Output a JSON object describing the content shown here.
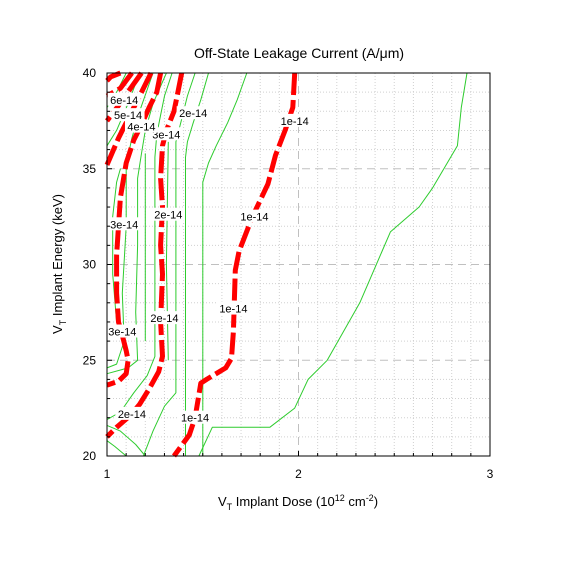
{
  "chart_data": {
    "type": "contour",
    "title": "Off-State Leakage Current (A/μm)",
    "xlabel": {
      "base": "V",
      "sub": "T",
      "rest": " Implant Dose (10",
      "sup": "12",
      "tail": " cm",
      "sup2": "-2",
      "end": ")"
    },
    "ylabel": {
      "base": "V",
      "sub": "T",
      "rest": " Implant Energy (keV)"
    },
    "xlim": [
      1,
      3
    ],
    "ylim": [
      20,
      40
    ],
    "x_ticks": [
      1,
      2,
      3
    ],
    "x_tick_labels": [
      "1",
      "2",
      "3"
    ],
    "y_ticks": [
      20,
      25,
      30,
      35,
      40
    ],
    "y_tick_labels": [
      "20",
      "25",
      "30",
      "35",
      "40"
    ],
    "grid": "dashed at major ticks, dotted at minor ticks",
    "colors": {
      "thin_contour": "#2ecc2e",
      "major_contour": "#ff0000",
      "grid_major": "#c0c0c0",
      "grid_minor": "#d0d0d0"
    },
    "major_contours": [
      {
        "level": "1e-14",
        "points": [
          [
            1.98,
            40
          ],
          [
            1.97,
            38.2
          ],
          [
            1.93,
            37
          ],
          [
            1.88,
            35.7
          ],
          [
            1.84,
            34.2
          ],
          [
            1.76,
            32.5
          ],
          [
            1.69,
            30.7
          ],
          [
            1.67,
            29.7
          ],
          [
            1.66,
            26.5
          ],
          [
            1.65,
            25.1
          ],
          [
            1.62,
            24.6
          ],
          [
            1.52,
            24.0
          ],
          [
            1.49,
            23.8
          ],
          [
            1.46,
            22.0
          ],
          [
            1.43,
            21.1
          ],
          [
            1.35,
            20
          ]
        ]
      },
      {
        "level": "2e-14",
        "points": [
          [
            1.39,
            40
          ],
          [
            1.37,
            39.0
          ],
          [
            1.35,
            38.0
          ],
          [
            1.31,
            37.0
          ],
          [
            1.29,
            36.2
          ],
          [
            1.28,
            34.5
          ],
          [
            1.29,
            33.0
          ],
          [
            1.28,
            31.0
          ],
          [
            1.29,
            29.5
          ],
          [
            1.28,
            27.0
          ],
          [
            1.29,
            25.2
          ],
          [
            1.27,
            24.4
          ],
          [
            1.22,
            23.5
          ],
          [
            1.17,
            22.7
          ],
          [
            1.12,
            22.1
          ],
          [
            1.05,
            21.5
          ],
          [
            1.0,
            21.0
          ]
        ]
      },
      {
        "level": "3e-14",
        "points": [
          [
            1.28,
            40
          ],
          [
            1.26,
            39.0
          ],
          [
            1.22,
            38.2
          ],
          [
            1.18,
            37.3
          ],
          [
            1.14,
            36.5
          ],
          [
            1.1,
            35.3
          ],
          [
            1.07,
            33.5
          ],
          [
            1.06,
            32.0
          ],
          [
            1.05,
            30.5
          ],
          [
            1.05,
            28.5
          ],
          [
            1.06,
            27.0
          ],
          [
            1.08,
            26.3
          ],
          [
            1.1,
            25.5
          ],
          [
            1.11,
            25.0
          ],
          [
            1.1,
            24.3
          ],
          [
            1.06,
            23.9
          ],
          [
            1.0,
            23.7
          ]
        ]
      },
      {
        "level": "4e-14",
        "points": [
          [
            1.23,
            40
          ],
          [
            1.18,
            39.0
          ],
          [
            1.13,
            38.0
          ],
          [
            1.06,
            36.6
          ],
          [
            1.0,
            35.2
          ]
        ]
      },
      {
        "level": "5e-14",
        "points": [
          [
            1.18,
            40
          ],
          [
            1.13,
            39.3
          ],
          [
            1.06,
            38.3
          ],
          [
            1.0,
            37.5
          ]
        ]
      },
      {
        "level": "6e-14",
        "points": [
          [
            1.13,
            40
          ],
          [
            1.07,
            39.2
          ],
          [
            1.0,
            38.8
          ]
        ]
      },
      {
        "level": "7e-14",
        "points": [
          [
            1.07,
            40
          ],
          [
            1.02,
            39.8
          ],
          [
            1.0,
            39.6
          ]
        ]
      }
    ],
    "minor_contours": [
      [
        [
          2.88,
          40
        ],
        [
          2.85,
          38.2
        ],
        [
          2.83,
          36.2
        ],
        [
          2.7,
          34.0
        ],
        [
          2.63,
          33.0
        ],
        [
          2.48,
          31.7
        ],
        [
          2.32,
          28.0
        ],
        [
          2.15,
          25.0
        ],
        [
          2.05,
          24.0
        ],
        [
          1.98,
          22.5
        ],
        [
          1.85,
          21.5
        ],
        [
          1.55,
          21.5
        ],
        [
          1.48,
          20
        ]
      ],
      [
        [
          1.73,
          40
        ],
        [
          1.68,
          38.6
        ],
        [
          1.63,
          37.4
        ],
        [
          1.57,
          36.2
        ],
        [
          1.53,
          35.3
        ],
        [
          1.5,
          34.3
        ],
        [
          1.5,
          20
        ]
      ],
      [
        [
          1.53,
          40
        ],
        [
          1.49,
          38.6
        ],
        [
          1.45,
          37.4
        ],
        [
          1.42,
          36.4
        ],
        [
          1.41,
          35.6
        ],
        [
          1.41,
          20
        ]
      ],
      [
        [
          1.46,
          40
        ],
        [
          1.42,
          38.8
        ],
        [
          1.39,
          37.6
        ],
        [
          1.36,
          36.4
        ],
        [
          1.36,
          35.2
        ],
        [
          1.36,
          30.0
        ],
        [
          1.36,
          25.0
        ],
        [
          1.36,
          23.3
        ],
        [
          1.3,
          22.6
        ],
        [
          1.24,
          21.3
        ],
        [
          1.19,
          20
        ]
      ],
      [
        [
          1.34,
          40
        ],
        [
          1.3,
          38.8
        ],
        [
          1.28,
          37.8
        ],
        [
          1.26,
          36.8
        ],
        [
          1.25,
          35.6
        ],
        [
          1.25,
          32.0
        ],
        [
          1.25,
          28.0
        ],
        [
          1.25,
          25.2
        ],
        [
          1.21,
          24.2
        ],
        [
          1.14,
          23.3
        ],
        [
          1.07,
          22.3
        ],
        [
          1.0,
          21.9
        ]
      ],
      [
        [
          1.31,
          40
        ],
        [
          1.24,
          38.4
        ],
        [
          1.2,
          37.0
        ],
        [
          1.18,
          35.8
        ],
        [
          1.16,
          34.5
        ],
        [
          1.16,
          31.0
        ],
        [
          1.15,
          27.5
        ],
        [
          1.16,
          25.0
        ],
        [
          1.11,
          24.6
        ],
        [
          1.0,
          24.3
        ]
      ],
      [
        [
          1.24,
          40
        ],
        [
          1.17,
          38.0
        ],
        [
          1.13,
          36.6
        ],
        [
          1.1,
          35.2
        ],
        [
          1.1,
          32.0
        ],
        [
          1.08,
          28.5
        ],
        [
          1.09,
          26.0
        ],
        [
          1.05,
          24.8
        ],
        [
          1.0,
          24.6
        ]
      ],
      [
        [
          1.17,
          40
        ],
        [
          1.11,
          38.4
        ],
        [
          1.05,
          37.0
        ],
        [
          1.0,
          36.2
        ]
      ],
      [
        [
          1.1,
          40
        ],
        [
          1.05,
          39.0
        ],
        [
          1.0,
          38.2
        ]
      ],
      [
        [
          1.2,
          20
        ],
        [
          1.15,
          20.6
        ],
        [
          1.07,
          21.3
        ],
        [
          1.0,
          21.6
        ]
      ],
      [
        [
          1.1,
          20
        ],
        [
          1.04,
          20.5
        ],
        [
          1.0,
          20.8
        ]
      ],
      [
        [
          1.05,
          27.0
        ],
        [
          1.03,
          29.5
        ],
        [
          1.03,
          32.5
        ],
        [
          1.05,
          34.3
        ],
        [
          1.07,
          35.0
        ]
      ],
      [
        [
          1.2,
          35.8
        ],
        [
          1.2,
          31.0
        ],
        [
          1.2,
          26.0
        ]
      ],
      [
        [
          1.32,
          36.4
        ],
        [
          1.31,
          30.0
        ],
        [
          1.32,
          25.0
        ]
      ]
    ],
    "contour_labels": [
      {
        "text": "1e-14",
        "x": 1.98,
        "y": 37.5
      },
      {
        "text": "1e-14",
        "x": 1.77,
        "y": 32.5
      },
      {
        "text": "1e-14",
        "x": 1.66,
        "y": 27.7
      },
      {
        "text": "1e-14",
        "x": 1.46,
        "y": 22.0
      },
      {
        "text": "2e-14",
        "x": 1.45,
        "y": 37.9
      },
      {
        "text": "2e-14",
        "x": 1.32,
        "y": 32.6
      },
      {
        "text": "2e-14",
        "x": 1.3,
        "y": 27.2
      },
      {
        "text": "2e-14",
        "x": 1.13,
        "y": 22.2
      },
      {
        "text": "3e-14",
        "x": 1.31,
        "y": 36.8
      },
      {
        "text": "3e-14",
        "x": 1.09,
        "y": 32.1
      },
      {
        "text": "3e-14",
        "x": 1.08,
        "y": 26.5
      },
      {
        "text": "4e-14",
        "x": 1.18,
        "y": 37.2
      },
      {
        "text": "5e-14",
        "x": 1.11,
        "y": 37.8
      },
      {
        "text": "6e-14",
        "x": 1.09,
        "y": 38.6
      }
    ]
  }
}
